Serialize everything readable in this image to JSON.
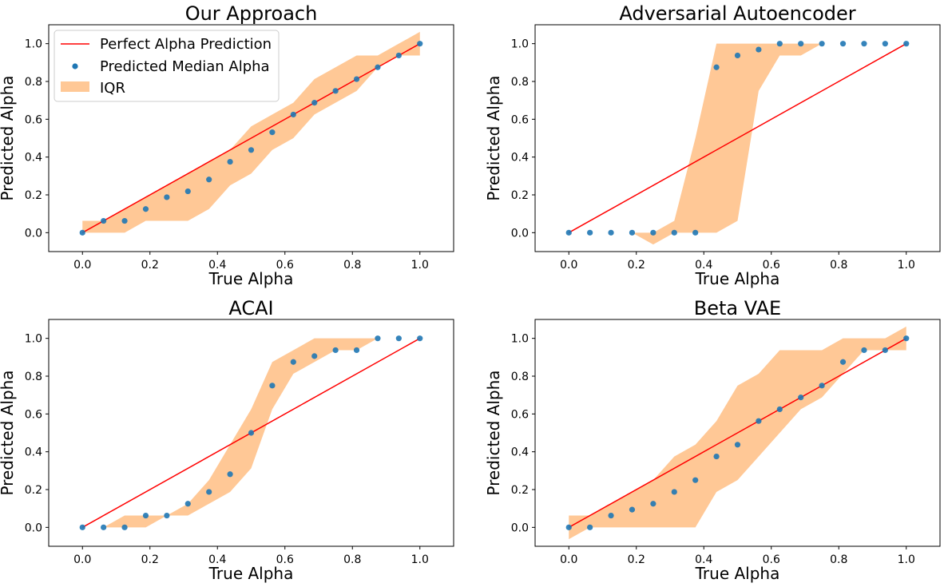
{
  "colors": {
    "line": "#ff0000",
    "points": "#1f77b4",
    "band": "#ffc896",
    "axes": "#000000"
  },
  "legend": {
    "location": "upper-left of first panel",
    "line_label": "Perfect Alpha Prediction",
    "points_label": "Predicted Median Alpha",
    "band_label": "IQR"
  },
  "chart_data": [
    {
      "type": "scatter",
      "title": "Our Approach",
      "xlabel": "True Alpha",
      "ylabel": "Predicted Alpha",
      "xlim": [
        -0.1,
        1.1
      ],
      "ylim": [
        -0.1,
        1.1
      ],
      "xticks": [
        "0.0",
        "0.2",
        "0.4",
        "0.6",
        "0.8",
        "1.0"
      ],
      "yticks": [
        "0.0",
        "0.2",
        "0.4",
        "0.6",
        "0.8",
        "1.0"
      ],
      "grid": false,
      "x": [
        0.0,
        0.0625,
        0.125,
        0.1875,
        0.25,
        0.3125,
        0.375,
        0.4375,
        0.5,
        0.5625,
        0.625,
        0.6875,
        0.75,
        0.8125,
        0.875,
        0.9375,
        1.0
      ],
      "median": [
        0.0,
        0.0625,
        0.0625,
        0.125,
        0.1875,
        0.2188,
        0.2812,
        0.375,
        0.4375,
        0.5312,
        0.625,
        0.6875,
        0.75,
        0.8125,
        0.875,
        0.9375,
        1.0
      ],
      "iqr_low": [
        0.0,
        0.0,
        0.0,
        0.0625,
        0.0625,
        0.0625,
        0.125,
        0.25,
        0.3125,
        0.4375,
        0.5,
        0.625,
        0.6875,
        0.75,
        0.875,
        0.9375,
        0.9375
      ],
      "iqr_high": [
        0.0625,
        0.0625,
        0.125,
        0.1875,
        0.25,
        0.3125,
        0.375,
        0.4375,
        0.5625,
        0.625,
        0.6875,
        0.8125,
        0.875,
        0.9375,
        0.9375,
        1.0,
        1.0625
      ]
    },
    {
      "type": "scatter",
      "title": "Adversarial Autoencoder",
      "xlabel": "True Alpha",
      "ylabel": "Predicted Alpha",
      "xlim": [
        -0.1,
        1.1
      ],
      "ylim": [
        -0.1,
        1.1
      ],
      "xticks": [
        "0.0",
        "0.2",
        "0.4",
        "0.6",
        "0.8",
        "1.0"
      ],
      "yticks": [
        "0.0",
        "0.2",
        "0.4",
        "0.6",
        "0.8",
        "1.0"
      ],
      "grid": false,
      "x": [
        0.0,
        0.0625,
        0.125,
        0.1875,
        0.25,
        0.3125,
        0.375,
        0.4375,
        0.5,
        0.5625,
        0.625,
        0.6875,
        0.75,
        0.8125,
        0.875,
        0.9375,
        1.0
      ],
      "median": [
        0.0,
        0.0,
        0.0,
        0.0,
        0.0,
        0.0,
        0.0,
        0.875,
        0.9375,
        0.9688,
        1.0,
        1.0,
        1.0,
        1.0,
        1.0,
        1.0,
        1.0
      ],
      "iqr_low": [
        0.0,
        0.0,
        0.0,
        0.0,
        -0.0625,
        0.0,
        0.0,
        0.0,
        0.0625,
        0.75,
        0.9375,
        0.9375,
        1.0,
        1.0,
        1.0,
        1.0,
        1.0
      ],
      "iqr_high": [
        0.0,
        0.0,
        0.0,
        0.0,
        0.0,
        0.0625,
        0.5,
        1.0,
        1.0,
        1.0,
        1.0,
        1.0,
        1.0,
        1.0,
        1.0,
        1.0,
        1.0
      ]
    },
    {
      "type": "scatter",
      "title": "ACAI",
      "xlabel": "True Alpha",
      "ylabel": "Predicted Alpha",
      "xlim": [
        -0.1,
        1.1
      ],
      "ylim": [
        -0.1,
        1.1
      ],
      "xticks": [
        "0.0",
        "0.2",
        "0.4",
        "0.6",
        "0.8",
        "1.0"
      ],
      "yticks": [
        "0.0",
        "0.2",
        "0.4",
        "0.6",
        "0.8",
        "1.0"
      ],
      "grid": false,
      "x": [
        0.0,
        0.0625,
        0.125,
        0.1875,
        0.25,
        0.3125,
        0.375,
        0.4375,
        0.5,
        0.5625,
        0.625,
        0.6875,
        0.75,
        0.8125,
        0.875,
        0.9375,
        1.0
      ],
      "median": [
        0.0,
        0.0,
        0.0,
        0.0625,
        0.0625,
        0.125,
        0.1875,
        0.2812,
        0.5,
        0.75,
        0.875,
        0.9062,
        0.9375,
        0.9375,
        1.0,
        1.0,
        1.0
      ],
      "iqr_low": [
        0.0,
        0.0,
        0.0,
        0.0,
        0.0625,
        0.0625,
        0.125,
        0.1875,
        0.3125,
        0.625,
        0.8125,
        0.875,
        0.9375,
        0.9375,
        1.0,
        1.0,
        1.0
      ],
      "iqr_high": [
        0.0,
        0.0,
        0.0625,
        0.0625,
        0.0625,
        0.125,
        0.25,
        0.4375,
        0.625,
        0.875,
        0.9375,
        1.0,
        1.0,
        1.0,
        1.0,
        1.0,
        1.0
      ]
    },
    {
      "type": "scatter",
      "title": "Beta VAE",
      "xlabel": "True Alpha",
      "ylabel": "Predicted Alpha",
      "xlim": [
        -0.1,
        1.1
      ],
      "ylim": [
        -0.1,
        1.1
      ],
      "xticks": [
        "0.0",
        "0.2",
        "0.4",
        "0.6",
        "0.8",
        "1.0"
      ],
      "yticks": [
        "0.0",
        "0.2",
        "0.4",
        "0.6",
        "0.8",
        "1.0"
      ],
      "grid": false,
      "x": [
        0.0,
        0.0625,
        0.125,
        0.1875,
        0.25,
        0.3125,
        0.375,
        0.4375,
        0.5,
        0.5625,
        0.625,
        0.6875,
        0.75,
        0.8125,
        0.875,
        0.9375,
        1.0
      ],
      "median": [
        0.0,
        0.0,
        0.0625,
        0.0938,
        0.125,
        0.1875,
        0.25,
        0.375,
        0.4375,
        0.5625,
        0.625,
        0.6875,
        0.75,
        0.875,
        0.9375,
        0.9375,
        1.0
      ],
      "iqr_low": [
        -0.0625,
        0.0,
        0.0,
        0.0,
        0.0,
        0.0,
        0.0,
        0.1875,
        0.25,
        0.375,
        0.5,
        0.625,
        0.6875,
        0.8125,
        0.9375,
        0.9375,
        0.9375
      ],
      "iqr_high": [
        0.0625,
        0.0625,
        0.125,
        0.1875,
        0.25,
        0.375,
        0.4375,
        0.5625,
        0.75,
        0.8125,
        0.9375,
        0.9375,
        0.9375,
        1.0,
        1.0,
        1.0,
        1.0625
      ]
    }
  ]
}
